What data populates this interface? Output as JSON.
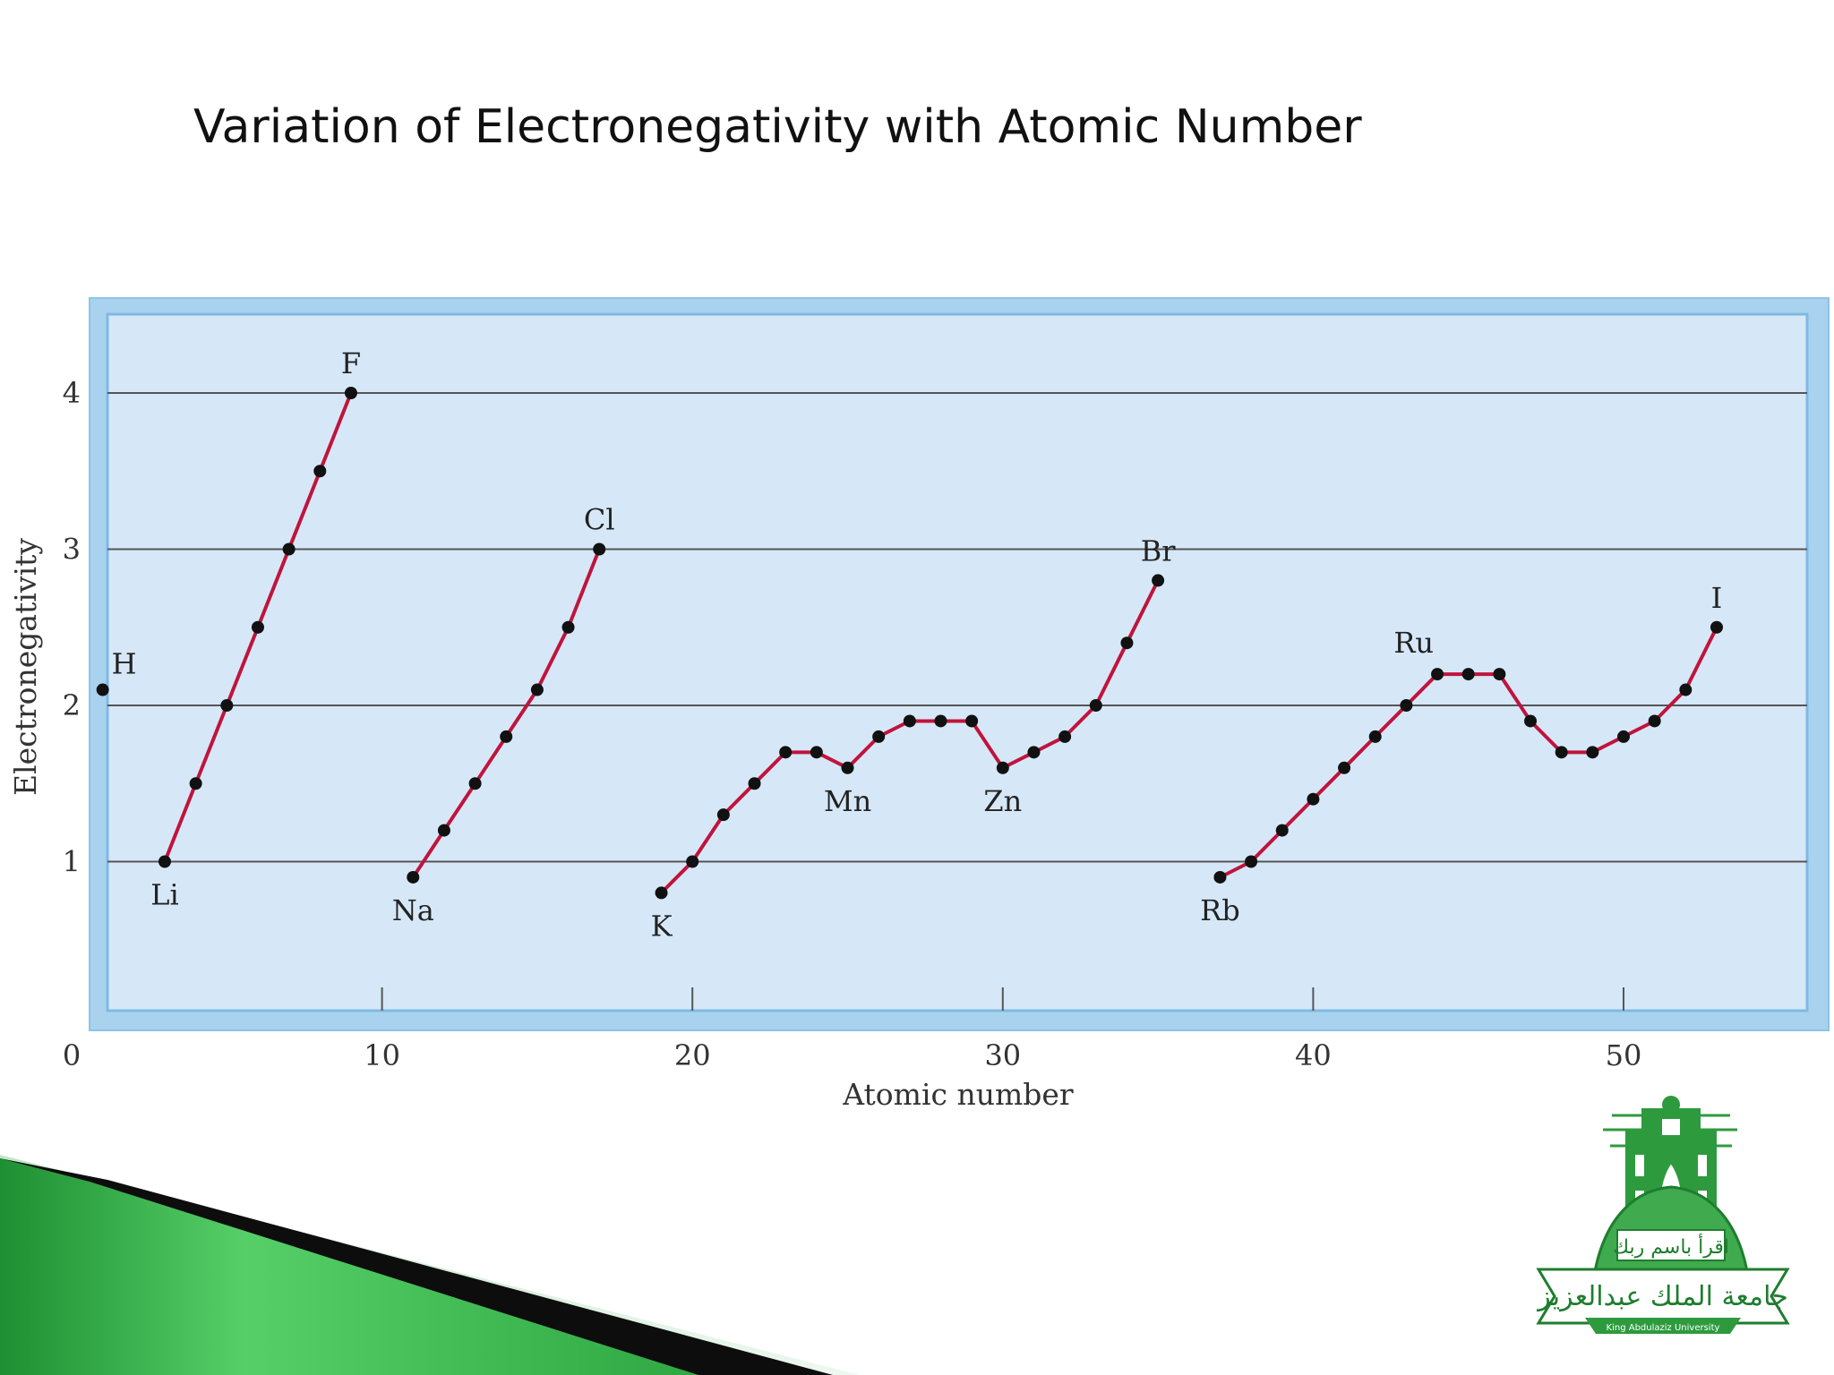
{
  "slide": {
    "title": "Variation of Electronegativity with Atomic Number",
    "logo": {
      "name": "King Abdulaziz University",
      "arabic_motto": "اقرأ باسم ربك",
      "arabic_name": "جامعة الملك عبدالعزيز",
      "english_name": "King Abdulaziz University"
    },
    "colors": {
      "green_dark": "#1b8a2e",
      "green_light": "#5fd070",
      "accent_dark": "#111111"
    }
  },
  "chart_data": {
    "type": "line",
    "title": "",
    "xlabel": "Atomic number",
    "ylabel": "Electronegativity",
    "xlim": [
      0,
      56
    ],
    "ylim": [
      0,
      4.5
    ],
    "x_ticks": [
      0,
      10,
      20,
      30,
      40,
      50
    ],
    "y_ticks": [
      1,
      2,
      3,
      4
    ],
    "grid": "horizontal",
    "colors": {
      "line": "#c0143c",
      "point": "#111111",
      "panel": "#d6e8f8",
      "frame": "#9ccbeb"
    },
    "series": [
      {
        "x": [
          1
        ],
        "y": [
          2.1
        ]
      },
      {
        "x": [
          3,
          4,
          5,
          6,
          7,
          8,
          9
        ],
        "y": [
          1.0,
          1.5,
          2.0,
          2.5,
          3.0,
          3.5,
          4.0
        ]
      },
      {
        "x": [
          11,
          12,
          13,
          14,
          15,
          16,
          17
        ],
        "y": [
          0.9,
          1.2,
          1.5,
          1.8,
          2.1,
          2.5,
          3.0
        ]
      },
      {
        "x": [
          19,
          20,
          21,
          22,
          23,
          24,
          25,
          26,
          27,
          28,
          29,
          30,
          31,
          32,
          33,
          34,
          35
        ],
        "y": [
          0.8,
          1.0,
          1.3,
          1.5,
          1.7,
          1.7,
          1.6,
          1.8,
          1.9,
          1.9,
          1.9,
          1.6,
          1.7,
          1.8,
          2.0,
          2.4,
          2.8
        ]
      },
      {
        "x": [
          37,
          38,
          39,
          40,
          41,
          42,
          43,
          44,
          45,
          46,
          47,
          48,
          49,
          50,
          51,
          52,
          53
        ],
        "y": [
          0.9,
          1.0,
          1.2,
          1.4,
          1.6,
          1.8,
          2.0,
          2.2,
          2.2,
          2.2,
          1.9,
          1.7,
          1.7,
          1.8,
          1.9,
          2.1,
          2.5
        ]
      }
    ],
    "annotations": [
      {
        "text": "H",
        "x": 1,
        "y": 2.1,
        "pos": "above-right"
      },
      {
        "text": "Li",
        "x": 3,
        "y": 1.0,
        "pos": "below"
      },
      {
        "text": "F",
        "x": 9,
        "y": 4.0,
        "pos": "above"
      },
      {
        "text": "Na",
        "x": 11,
        "y": 0.9,
        "pos": "below"
      },
      {
        "text": "Cl",
        "x": 17,
        "y": 3.0,
        "pos": "above"
      },
      {
        "text": "K",
        "x": 19,
        "y": 0.8,
        "pos": "below"
      },
      {
        "text": "Mn",
        "x": 25,
        "y": 1.6,
        "pos": "below"
      },
      {
        "text": "Zn",
        "x": 30,
        "y": 1.6,
        "pos": "below"
      },
      {
        "text": "Br",
        "x": 35,
        "y": 2.8,
        "pos": "above"
      },
      {
        "text": "Rb",
        "x": 37,
        "y": 0.9,
        "pos": "below"
      },
      {
        "text": "Ru",
        "x": 44,
        "y": 2.2,
        "pos": "above-left"
      },
      {
        "text": "I",
        "x": 53,
        "y": 2.5,
        "pos": "above"
      }
    ]
  }
}
